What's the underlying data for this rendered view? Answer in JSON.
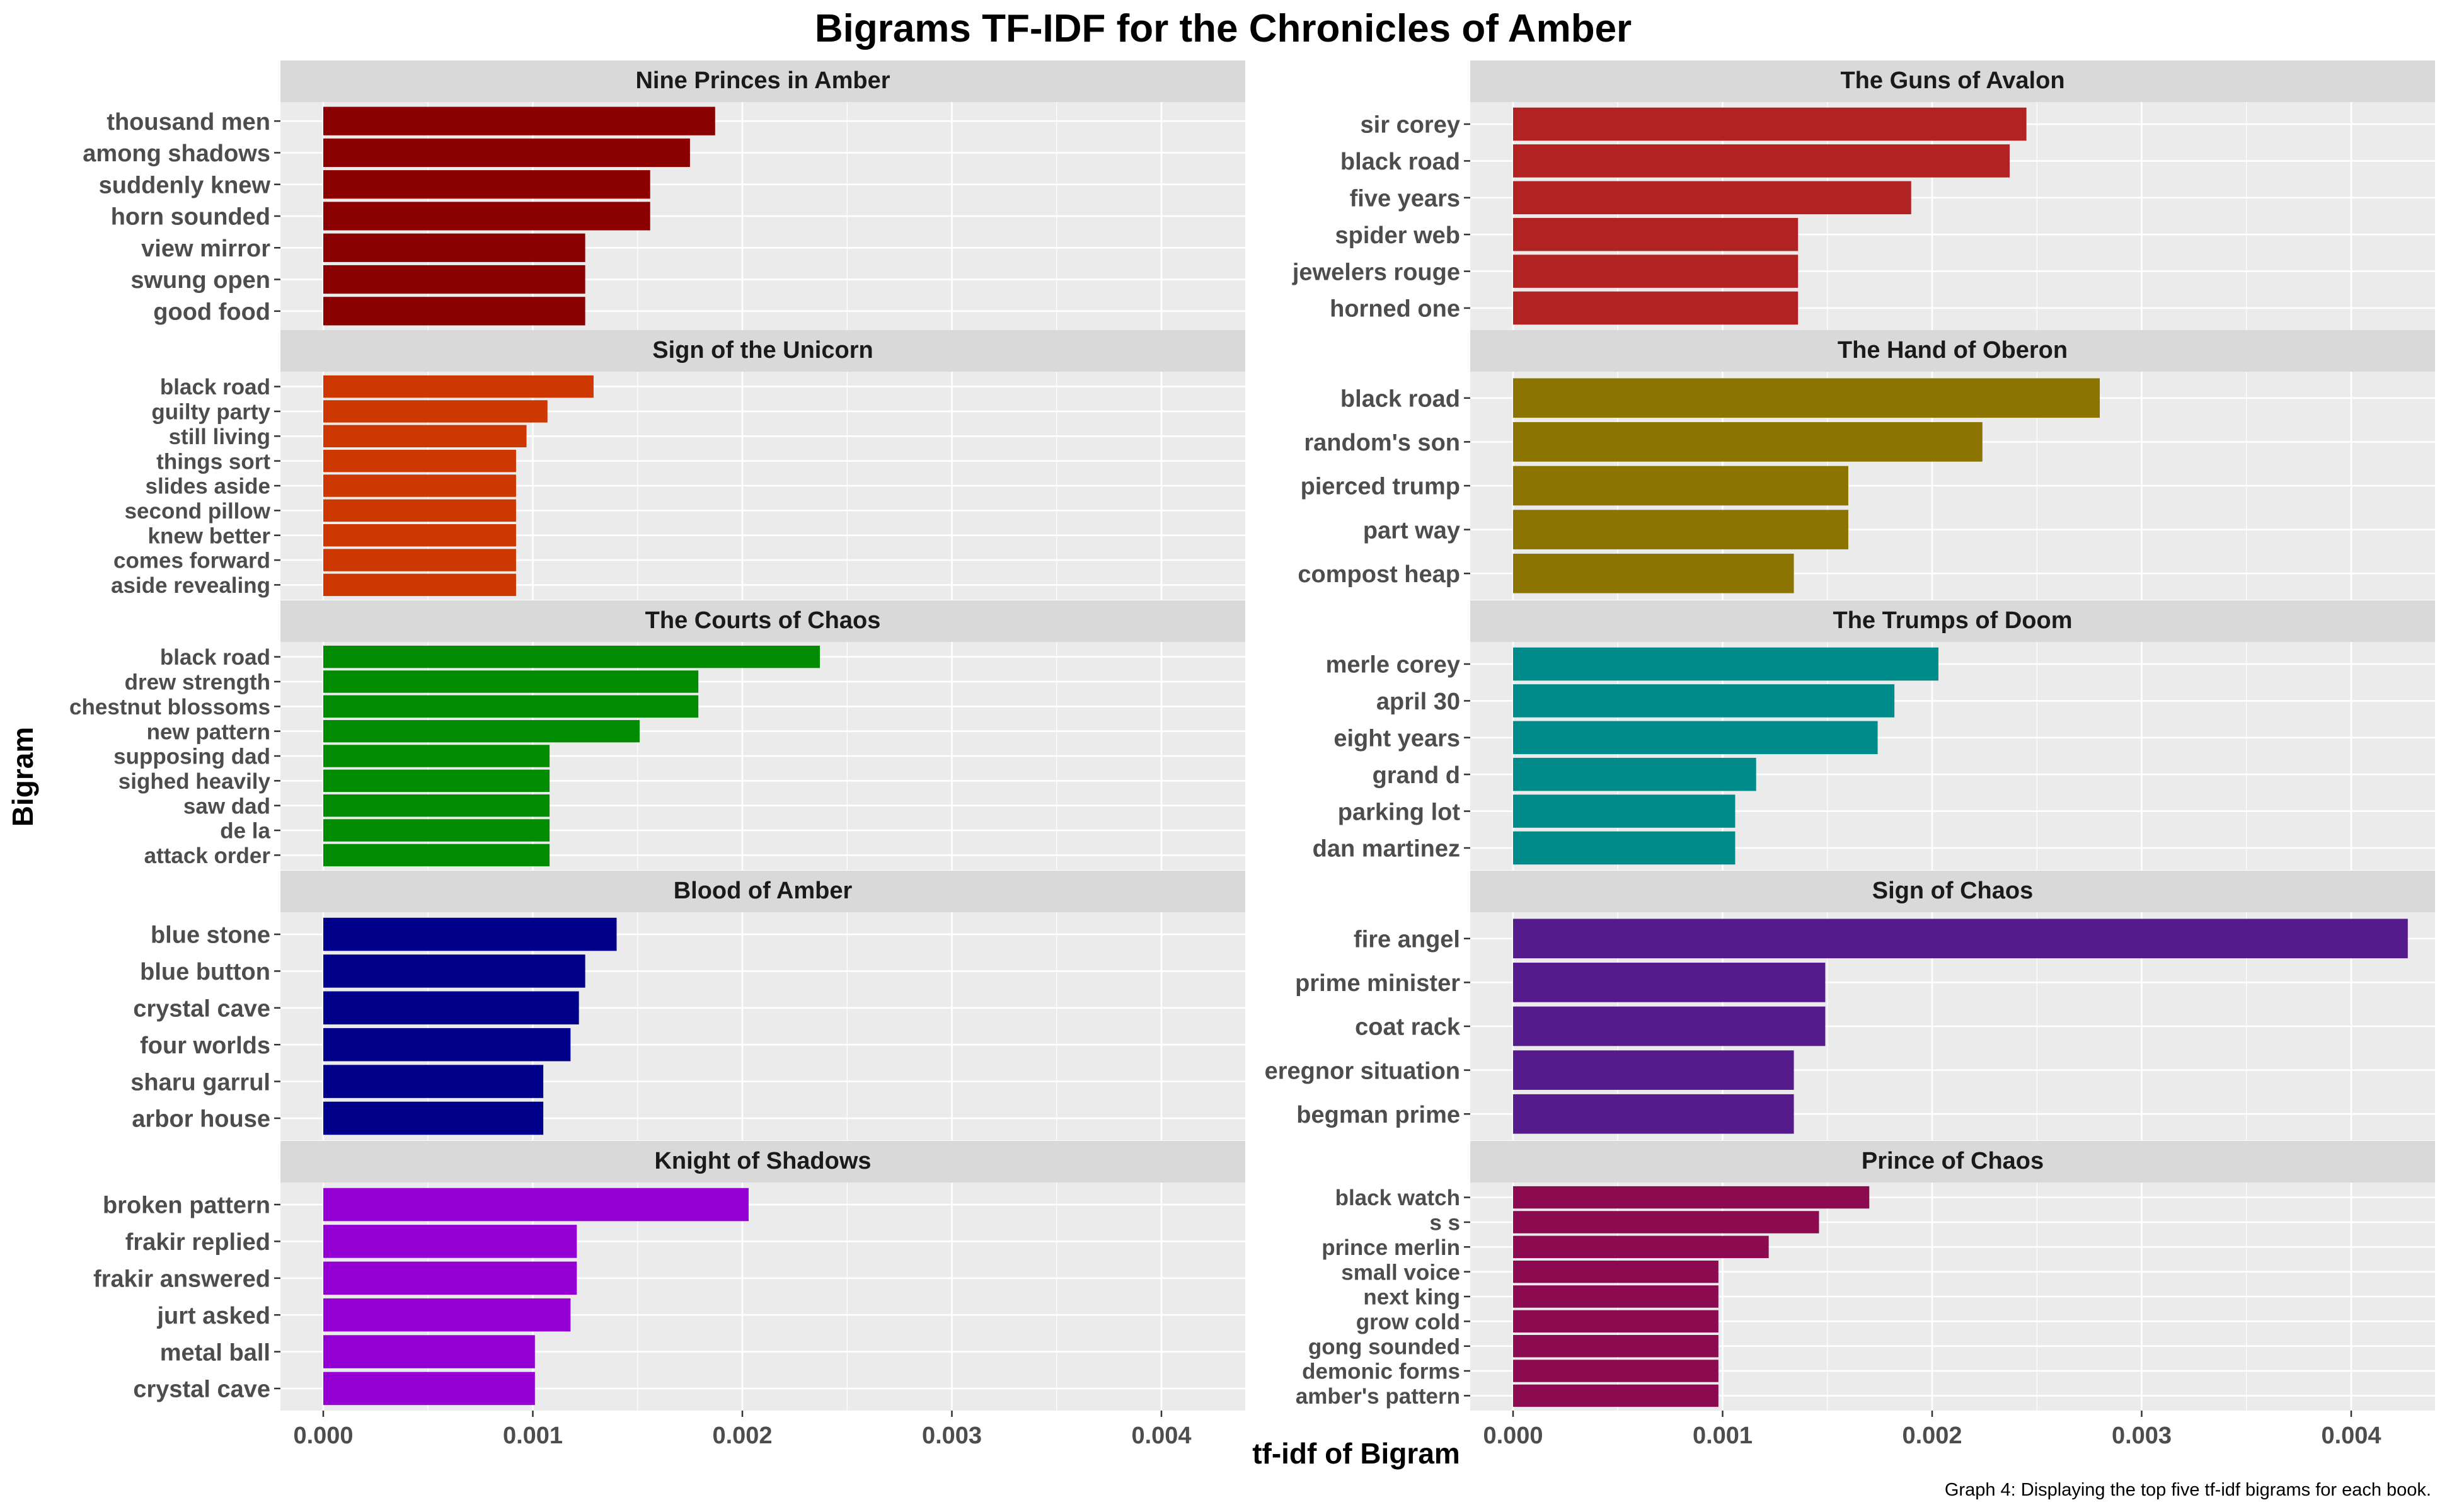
{
  "chart_data": {
    "type": "bar",
    "orientation": "horizontal",
    "title": "Bigrams TF-IDF for the Chronicles of Amber",
    "xlabel": "tf-idf of Bigram",
    "ylabel": "Bigram",
    "caption": "Graph 4: Displaying the top five tf-idf bigrams for each book.",
    "xlim": [
      0,
      0.0044
    ],
    "x_ticks": [
      "0.000",
      "0.001",
      "0.002",
      "0.003",
      "0.004"
    ],
    "grid": true,
    "legend": "none",
    "facets": [
      {
        "title": "Nine Princes in Amber",
        "color": "#8B0000",
        "categories": [
          "thousand men",
          "among shadows",
          "suddenly knew",
          "horn sounded",
          "view mirror",
          "swung open",
          "good food"
        ],
        "values": [
          0.00187,
          0.00175,
          0.00156,
          0.00156,
          0.00125,
          0.00125,
          0.00125
        ]
      },
      {
        "title": "The Guns of Avalon",
        "color": "#B22222",
        "categories": [
          "sir corey",
          "black road",
          "five years",
          "spider web",
          "jewelers rouge",
          "horned one"
        ],
        "values": [
          0.00245,
          0.00237,
          0.0019,
          0.00136,
          0.00136,
          0.00136
        ]
      },
      {
        "title": "Sign of the Unicorn",
        "color": "#CD3700",
        "categories": [
          "black road",
          "guilty party",
          "still living",
          "things sort",
          "slides aside",
          "second pillow",
          "knew better",
          "comes forward",
          "aside revealing"
        ],
        "values": [
          0.00129,
          0.00107,
          0.00097,
          0.00092,
          0.00092,
          0.00092,
          0.00092,
          0.00092,
          0.00092
        ]
      },
      {
        "title": "The Hand of Oberon",
        "color": "#8B7500",
        "categories": [
          "black road",
          "random's son",
          "pierced trump",
          "part way",
          "compost heap"
        ],
        "values": [
          0.0028,
          0.00224,
          0.0016,
          0.0016,
          0.00134
        ]
      },
      {
        "title": "The Courts of Chaos",
        "color": "#008B00",
        "categories": [
          "black road",
          "drew strength",
          "chestnut blossoms",
          "new pattern",
          "supposing dad",
          "sighed heavily",
          "saw dad",
          "de la",
          "attack order"
        ],
        "values": [
          0.00237,
          0.00179,
          0.00179,
          0.00151,
          0.00108,
          0.00108,
          0.00108,
          0.00108,
          0.00108
        ]
      },
      {
        "title": "The Trumps of Doom",
        "color": "#008B8B",
        "categories": [
          "merle corey",
          "april 30",
          "eight years",
          "grand d",
          "parking lot",
          "dan martinez"
        ],
        "values": [
          0.00203,
          0.00182,
          0.00174,
          0.00116,
          0.00106,
          0.00106
        ]
      },
      {
        "title": "Blood of Amber",
        "color": "#00008B",
        "categories": [
          "blue stone",
          "blue button",
          "crystal cave",
          "four worlds",
          "sharu garrul",
          "arbor house"
        ],
        "values": [
          0.0014,
          0.00125,
          0.00122,
          0.00118,
          0.00105,
          0.00105
        ]
      },
      {
        "title": "Sign of Chaos",
        "color": "#551A8B",
        "categories": [
          "fire angel",
          "prime minister",
          "coat rack",
          "eregnor situation",
          "begman prime"
        ],
        "values": [
          0.00427,
          0.00149,
          0.00149,
          0.00134,
          0.00134
        ]
      },
      {
        "title": "Knight of Shadows",
        "color": "#9400D3",
        "categories": [
          "broken pattern",
          "frakir replied",
          "frakir answered",
          "jurt asked",
          "metal ball",
          "crystal cave"
        ],
        "values": [
          0.00203,
          0.00121,
          0.00121,
          0.00118,
          0.00101,
          0.00101
        ]
      },
      {
        "title": "Prince of Chaos",
        "color": "#8B0A50",
        "categories": [
          "black watch",
          "s s",
          "prince merlin",
          "small voice",
          "next king",
          "grow cold",
          "gong sounded",
          "demonic forms",
          "amber's pattern"
        ],
        "values": [
          0.0017,
          0.00146,
          0.00122,
          0.00098,
          0.00098,
          0.00098,
          0.00098,
          0.00098,
          0.00098
        ]
      }
    ]
  },
  "colors": {
    "panel_background": "#EBEBEB",
    "strip_background": "#D9D9D9",
    "grid_line": "#FFFFFF"
  }
}
